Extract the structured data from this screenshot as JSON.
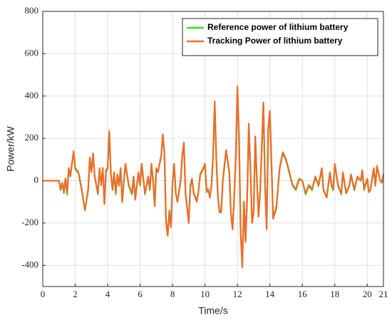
{
  "chart_data": {
    "type": "line",
    "xlabel": "Time/s",
    "ylabel": "Power/kW",
    "x": [
      0,
      1.0,
      1.1,
      1.2,
      1.3,
      1.4,
      1.5,
      1.6,
      1.7,
      1.8,
      1.9,
      2.0,
      2.2,
      2.4,
      2.6,
      2.8,
      2.9,
      3.0,
      3.1,
      3.2,
      3.4,
      3.5,
      3.6,
      3.7,
      3.8,
      3.9,
      4.0,
      4.1,
      4.2,
      4.3,
      4.4,
      4.5,
      4.6,
      4.7,
      4.8,
      4.9,
      5.0,
      5.1,
      5.3,
      5.5,
      5.6,
      5.7,
      5.8,
      5.9,
      6.0,
      6.1,
      6.3,
      6.5,
      6.6,
      6.7,
      6.8,
      6.9,
      7.0,
      7.1,
      7.3,
      7.4,
      7.5,
      7.6,
      7.7,
      7.8,
      7.9,
      8.0,
      8.1,
      8.2,
      8.3,
      8.5,
      8.6,
      8.7,
      8.8,
      9.0,
      9.1,
      9.2,
      9.3,
      9.5,
      9.6,
      9.7,
      9.9,
      10.0,
      10.1,
      10.2,
      10.3,
      10.4,
      10.5,
      10.6,
      10.7,
      10.8,
      10.9,
      11.0,
      11.1,
      11.3,
      11.5,
      11.6,
      11.7,
      11.8,
      11.9,
      12.0,
      12.1,
      12.2,
      12.3,
      12.4,
      12.5,
      12.6,
      12.7,
      12.8,
      12.9,
      13.0,
      13.1,
      13.2,
      13.3,
      13.4,
      13.6,
      13.7,
      13.8,
      13.9,
      14.0,
      14.1,
      14.2,
      14.4,
      14.6,
      14.8,
      15.0,
      15.2,
      15.4,
      15.6,
      15.8,
      16.0,
      16.2,
      16.4,
      16.6,
      16.8,
      17.0,
      17.2,
      17.3,
      17.5,
      17.7,
      17.8,
      17.9,
      18.0,
      18.2,
      18.4,
      18.5,
      18.7,
      18.9,
      19.0,
      19.2,
      19.4,
      19.6,
      19.7,
      19.8,
      20.0,
      20.1,
      20.2,
      20.4,
      20.5,
      20.6,
      20.8,
      20.9,
      21.0
    ],
    "series": [
      {
        "name": "Reference power of lithium battery",
        "color": "#2ee02e",
        "values": [
          0,
          0,
          -45,
          -10,
          -60,
          10,
          -65,
          60,
          20,
          80,
          135,
          55,
          35,
          -45,
          -140,
          -45,
          105,
          40,
          125,
          20,
          -65,
          55,
          -20,
          55,
          -110,
          45,
          55,
          230,
          30,
          -45,
          35,
          -65,
          25,
          -25,
          55,
          -100,
          0,
          75,
          -25,
          -65,
          15,
          -90,
          -25,
          35,
          -25,
          75,
          -65,
          15,
          -45,
          75,
          0,
          -120,
          55,
          40,
          115,
          210,
          130,
          -190,
          -250,
          -140,
          -210,
          -15,
          75,
          -60,
          -100,
          -5,
          115,
          170,
          -60,
          -190,
          -30,
          5,
          -55,
          -95,
          -50,
          25,
          55,
          75,
          -55,
          -40,
          -80,
          -25,
          115,
          360,
          95,
          -80,
          -145,
          -145,
          0,
          140,
          35,
          -155,
          -220,
          -80,
          115,
          430,
          195,
          -245,
          -400,
          -100,
          -280,
          -80,
          260,
          55,
          -195,
          -145,
          200,
          0,
          -165,
          -50,
          360,
          -20,
          -220,
          240,
          320,
          75,
          -170,
          -120,
          55,
          130,
          95,
          35,
          -25,
          -45,
          5,
          0,
          -65,
          -25,
          -45,
          15,
          -25,
          55,
          -45,
          -80,
          35,
          -25,
          -45,
          75,
          -25,
          -65,
          35,
          -60,
          -25,
          25,
          -45,
          15,
          0,
          45,
          -45,
          5,
          -55,
          -45,
          55,
          -25,
          65,
          0,
          -10,
          25
        ]
      },
      {
        "name": "Tracking Power of lithium battery",
        "color": "#ef6b2b",
        "values": [
          0,
          0,
          -40,
          -10,
          -50,
          10,
          -60,
          60,
          20,
          80,
          140,
          60,
          40,
          -40,
          -140,
          -40,
          110,
          40,
          130,
          20,
          -60,
          60,
          -20,
          60,
          -110,
          50,
          60,
          235,
          30,
          -40,
          40,
          -60,
          30,
          -20,
          60,
          -100,
          0,
          80,
          -20,
          -60,
          20,
          -90,
          -20,
          40,
          -20,
          80,
          -60,
          20,
          -40,
          80,
          0,
          -120,
          60,
          40,
          120,
          220,
          130,
          -200,
          -260,
          -150,
          -220,
          -10,
          80,
          -60,
          -100,
          0,
          120,
          180,
          -60,
          -200,
          -20,
          10,
          -60,
          -100,
          -50,
          30,
          60,
          80,
          -50,
          -40,
          -80,
          -20,
          120,
          375,
          100,
          -80,
          -150,
          -150,
          0,
          145,
          40,
          -160,
          -230,
          -80,
          120,
          445,
          200,
          -250,
          -410,
          -100,
          -290,
          -80,
          270,
          60,
          -200,
          -150,
          210,
          0,
          -170,
          -50,
          370,
          -20,
          -230,
          250,
          330,
          80,
          -180,
          -130,
          60,
          135,
          100,
          40,
          -20,
          -40,
          10,
          0,
          -60,
          -20,
          -40,
          20,
          -20,
          60,
          -40,
          -80,
          40,
          -20,
          -40,
          80,
          -20,
          -60,
          40,
          -60,
          -20,
          30,
          -40,
          20,
          0,
          50,
          -40,
          10,
          -50,
          -40,
          60,
          -20,
          70,
          0,
          -10,
          30
        ]
      }
    ],
    "xlim": [
      0,
      21
    ],
    "xticks": [
      0,
      2,
      4,
      6,
      8,
      10,
      12,
      14,
      16,
      18,
      20,
      21
    ],
    "ylim": [
      -500,
      800
    ],
    "yticks": [
      -400,
      -200,
      0,
      200,
      400,
      600,
      800
    ],
    "grid": true,
    "legend": "northeast"
  }
}
